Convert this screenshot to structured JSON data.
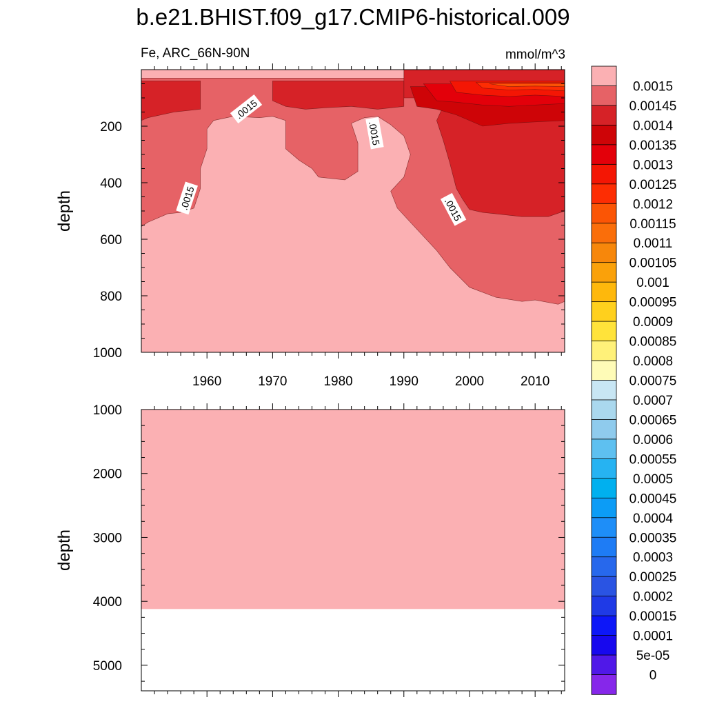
{
  "chart_data": {
    "type": "heatmap",
    "title": "b.e21.BHIST.f09_g17.CMIP6-historical.009",
    "variable_label": "Fe, ARC_66N-90N",
    "units_label": "mmol/m^3",
    "contour_label": ".0015",
    "x": {
      "range": [
        1950,
        2014.5
      ],
      "ticks": [
        1960,
        1970,
        1980,
        1990,
        2000,
        2010
      ],
      "tick_labels": [
        "1960",
        "1970",
        "1980",
        "1990",
        "2000",
        "2010"
      ]
    },
    "panels": [
      {
        "name": "upper-ocean",
        "ylabel": "depth",
        "ylim": [
          0,
          1000
        ],
        "y_ticks": [
          200,
          400,
          600,
          800,
          1000
        ],
        "y_tick_labels": [
          "200",
          "400",
          "600",
          "800",
          "1000"
        ],
        "background_value": 0.0015,
        "regions": [
          {
            "name": "0.00145-band",
            "value": 0.00145,
            "polygon": [
              [
                1950,
                0
              ],
              [
                2014.5,
                0
              ],
              [
                2014.5,
                820
              ],
              [
                2013.5,
                830
              ],
              [
                2010,
                815
              ],
              [
                2008,
                820
              ],
              [
                2004,
                805
              ],
              [
                2000,
                770
              ],
              [
                1997,
                700
              ],
              [
                1995,
                640
              ],
              [
                1993,
                590
              ],
              [
                1991,
                540
              ],
              [
                1989,
                490
              ],
              [
                1988,
                430
              ],
              [
                1990,
                380
              ],
              [
                1991,
                300
              ],
              [
                1990,
                235
              ],
              [
                1988,
                195
              ],
              [
                1986,
                165
              ],
              [
                1984,
                170
              ],
              [
                1982,
                190
              ],
              [
                1983,
                260
              ],
              [
                1983,
                360
              ],
              [
                1981,
                390
              ],
              [
                1979,
                385
              ],
              [
                1977,
                380
              ],
              [
                1976,
                350
              ],
              [
                1974,
                320
              ],
              [
                1972,
                280
              ],
              [
                1972,
                230
              ],
              [
                1972,
                180
              ],
              [
                1970,
                165
              ],
              [
                1968,
                170
              ],
              [
                1964,
                165
              ],
              [
                1961,
                180
              ],
              [
                1960,
                210
              ],
              [
                1960,
                280
              ],
              [
                1959,
                350
              ],
              [
                1959,
                420
              ],
              [
                1958,
                490
              ],
              [
                1956,
                505
              ],
              [
                1954,
                510
              ],
              [
                1951,
                540
              ],
              [
                1950,
                555
              ]
            ]
          },
          {
            "name": "0.0014-band",
            "value": 0.0014,
            "polygon": [
              [
                1990,
                0
              ],
              [
                2014.5,
                0
              ],
              [
                2014.5,
                500
              ],
              [
                2012,
                520
              ],
              [
                2008,
                520
              ],
              [
                2004,
                510
              ],
              [
                2002,
                505
              ],
              [
                2000,
                495
              ],
              [
                1999,
                460
              ],
              [
                1998,
                420
              ],
              [
                1997,
                330
              ],
              [
                1996,
                250
              ],
              [
                1995,
                180
              ],
              [
                1996,
                130
              ],
              [
                1993,
                100
              ],
              [
                1990,
                100
              ]
            ]
          },
          {
            "name": "0.0014-band-early",
            "value": 0.0014,
            "polygon": [
              [
                1950,
                40
              ],
              [
                1959,
                40
              ],
              [
                1959,
                140
              ],
              [
                1955,
                150
              ],
              [
                1951,
                170
              ],
              [
                1950,
                180
              ]
            ]
          },
          {
            "name": "0.0014-band-1970s",
            "value": 0.0014,
            "polygon": [
              [
                1970,
                40
              ],
              [
                1990,
                40
              ],
              [
                1990,
                130
              ],
              [
                1986,
                140
              ],
              [
                1982,
                130
              ],
              [
                1978,
                135
              ],
              [
                1975,
                140
              ],
              [
                1972,
                130
              ],
              [
                1970,
                110
              ]
            ]
          },
          {
            "name": "0.00135-band",
            "value": 0.00135,
            "polygon": [
              [
                1991,
                60
              ],
              [
                2014.5,
                60
              ],
              [
                2014.5,
                180
              ],
              [
                2010,
                185
              ],
              [
                2006,
                190
              ],
              [
                2002,
                200
              ],
              [
                1998,
                160
              ],
              [
                1995,
                140
              ],
              [
                1992,
                130
              ]
            ]
          },
          {
            "name": "0.0013-band",
            "value": 0.0013,
            "polygon": [
              [
                1993,
                50
              ],
              [
                2014.5,
                50
              ],
              [
                2014.5,
                120
              ],
              [
                2010,
                125
              ],
              [
                2006,
                130
              ],
              [
                2002,
                125
              ],
              [
                1998,
                115
              ],
              [
                1995,
                110
              ]
            ]
          },
          {
            "name": "0.00125-band",
            "value": 0.00125,
            "polygon": [
              [
                1997,
                40
              ],
              [
                2014.5,
                40
              ],
              [
                2014.5,
                95
              ],
              [
                2010,
                90
              ],
              [
                2006,
                95
              ],
              [
                2002,
                90
              ],
              [
                1998,
                80
              ]
            ]
          },
          {
            "name": "0.0012-band",
            "value": 0.0012,
            "polygon": [
              [
                2001,
                45
              ],
              [
                2014.5,
                45
              ],
              [
                2014.5,
                75
              ],
              [
                2010,
                70
              ],
              [
                2006,
                72
              ],
              [
                2002,
                65
              ]
            ]
          },
          {
            "name": "0.00115-band",
            "value": 0.00115,
            "polygon": [
              [
                2003,
                50
              ],
              [
                2014.5,
                50
              ],
              [
                2014.5,
                60
              ],
              [
                2010,
                58
              ],
              [
                2006,
                60
              ]
            ]
          },
          {
            "name": "surface-0.0015",
            "value": 0.0015,
            "polygon": [
              [
                1950,
                0
              ],
              [
                1990,
                0
              ],
              [
                1990,
                30
              ],
              [
                1970,
                30
              ],
              [
                1958,
                30
              ],
              [
                1950,
                30
              ]
            ]
          }
        ]
      },
      {
        "name": "deep-ocean",
        "ylabel": "depth",
        "ylim": [
          1000,
          5400
        ],
        "y_ticks": [
          1000,
          2000,
          3000,
          4000,
          5000
        ],
        "y_tick_labels": [
          "1000",
          "2000",
          "3000",
          "4000",
          "5000"
        ],
        "background_value": 0.0015,
        "bottom_depth": 4120
      }
    ],
    "colorbar": {
      "levels": [
        "0.0015",
        "0.00145",
        "0.0014",
        "0.00135",
        "0.0013",
        "0.00125",
        "0.0012",
        "0.00115",
        "0.0011",
        "0.00105",
        "0.001",
        "0.00095",
        "0.0009",
        "0.00085",
        "0.0008",
        "0.00075",
        "0.0007",
        "0.00065",
        "0.0006",
        "0.00055",
        "0.0005",
        "0.00045",
        "0.0004",
        "0.00035",
        "0.0003",
        "0.00025",
        "0.0002",
        "0.00015",
        "0.0001",
        "5e-05",
        "0"
      ],
      "colors": [
        "#fbb0b3",
        "#e66266",
        "#d62227",
        "#ce0407",
        "#e3000a",
        "#f41604",
        "#fd2d03",
        "#fb5505",
        "#fa6e0a",
        "#f7870b",
        "#faa10a",
        "#feb80c",
        "#ffd01d",
        "#ffe33a",
        "#fff179",
        "#fefbb7",
        "#c8e6f4",
        "#aad8ee",
        "#8fcbed",
        "#5ec0f0",
        "#26b3f2",
        "#00b0ef",
        "#0c9cf6",
        "#1e8ef8",
        "#1e7cf5",
        "#2768ec",
        "#2a54e3",
        "#1f3ae6",
        "#0d17f8",
        "#1708ee",
        "#5018e8",
        "#8627ea"
      ]
    }
  }
}
